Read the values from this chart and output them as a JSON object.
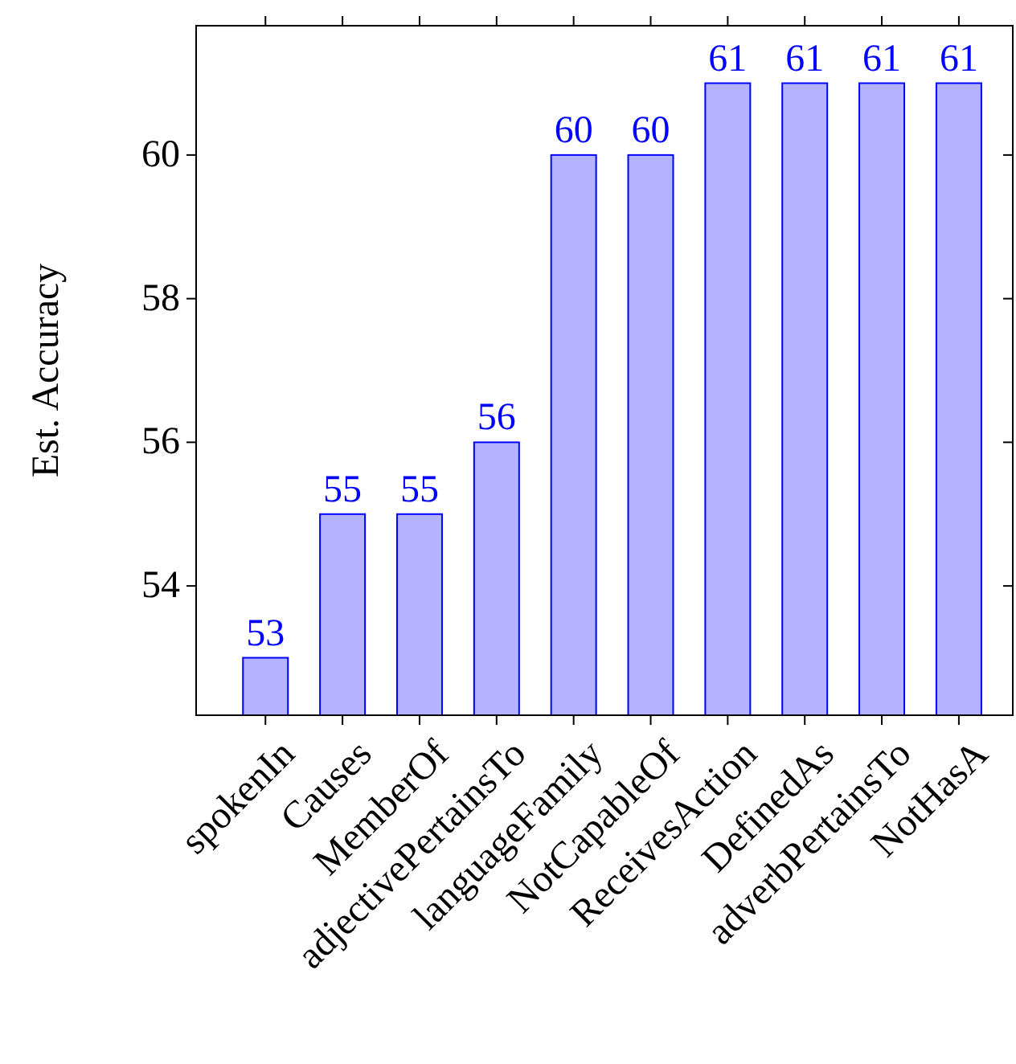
{
  "chart_data": {
    "type": "bar",
    "ylabel": "Est. Accuracy",
    "categories": [
      "spokenIn",
      "Causes",
      "MemberOf",
      "adjectivePertainsTo",
      "languageFamily",
      "NotCapableOf",
      "ReceivesAction",
      "DefinedAs",
      "adverbPertainsTo",
      "NotHasA"
    ],
    "series": [
      {
        "color": "#b3b3ff",
        "values": [
          53,
          55,
          55,
          56,
          60,
          60,
          61,
          61,
          61,
          61
        ]
      }
    ],
    "ylim": [
      52.2,
      61.8
    ],
    "yticks": [
      54,
      56,
      58,
      60
    ],
    "data_labels": true
  }
}
